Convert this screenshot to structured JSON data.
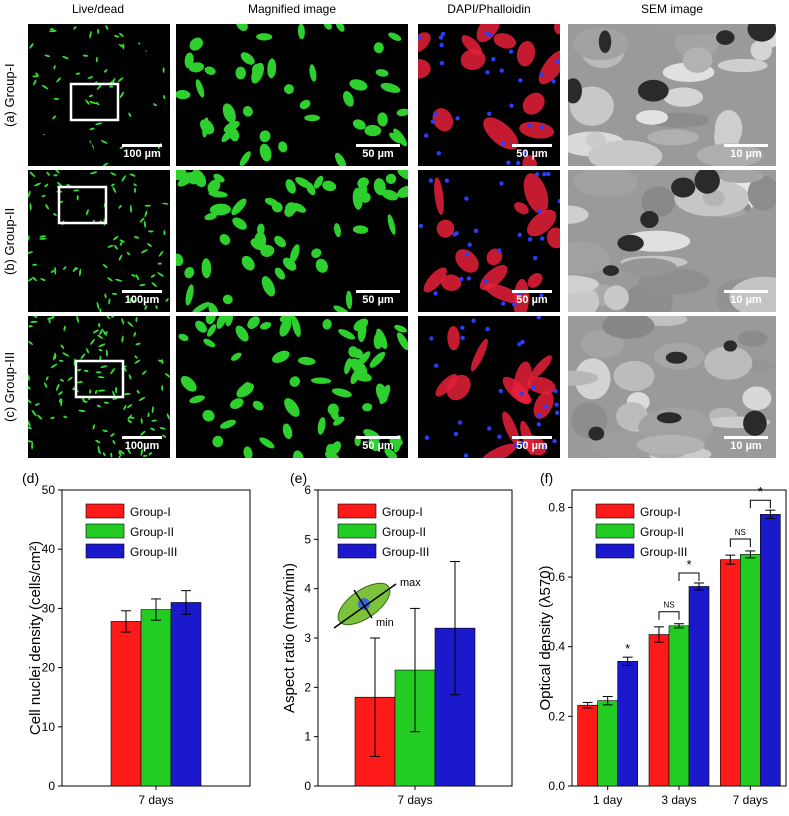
{
  "columns": [
    "Live/dead",
    "Magnified image",
    "DAPI/Phalloidin",
    "SEM image"
  ],
  "rows": [
    {
      "label": "(a) Group-I",
      "scales": [
        "100 µm",
        "50 µm",
        "50 µm",
        "10 µm"
      ]
    },
    {
      "label": "(b) Group-II",
      "scales": [
        "100µm",
        "50 µm",
        "50 µm",
        "10 µm"
      ]
    },
    {
      "label": "(c) Group-III",
      "scales": [
        "100µm",
        "50 µm",
        "50 µm",
        "10 µm"
      ]
    }
  ],
  "panel_letters": {
    "d": "(d)",
    "e": "(e)",
    "f": "(f)"
  },
  "colors": {
    "group1": "#ff1a1a",
    "group2": "#22cc22",
    "group3": "#1a1acc"
  },
  "chart_data": [
    {
      "panel": "d",
      "type": "bar",
      "categories": [
        "7 days"
      ],
      "series": [
        {
          "name": "Group-I",
          "values": [
            27.8
          ],
          "errors": [
            1.8
          ]
        },
        {
          "name": "Group-II",
          "values": [
            29.8
          ],
          "errors": [
            1.8
          ]
        },
        {
          "name": "Group-III",
          "values": [
            31.0
          ],
          "errors": [
            2.0
          ]
        }
      ],
      "xlabel": "7 days",
      "ylabel": "Cell nuclei density (cells/cm²)",
      "ylim": [
        0,
        50
      ],
      "yticks": [
        "0",
        "10",
        "20",
        "30",
        "40",
        "50"
      ],
      "legend": "top-left"
    },
    {
      "panel": "e",
      "type": "bar",
      "categories": [
        "7 days"
      ],
      "series": [
        {
          "name": "Group-I",
          "values": [
            1.8
          ],
          "errors": [
            1.2
          ]
        },
        {
          "name": "Group-II",
          "values": [
            2.35
          ],
          "errors": [
            1.25
          ]
        },
        {
          "name": "Group-III",
          "values": [
            3.2
          ],
          "errors": [
            1.35
          ]
        }
      ],
      "xlabel": "7 days",
      "ylabel": "Aspect ratio (max/min)",
      "ylim": [
        0,
        6
      ],
      "yticks": [
        "0",
        "1",
        "2",
        "3",
        "4",
        "5",
        "6"
      ],
      "inset_labels": [
        "max",
        "min"
      ],
      "legend": "top-left"
    },
    {
      "panel": "f",
      "type": "bar",
      "categories": [
        "1 day",
        "3 days",
        "7 days"
      ],
      "series": [
        {
          "name": "Group-I",
          "values": [
            0.232,
            0.435,
            0.65
          ],
          "errors": [
            0.008,
            0.022,
            0.013
          ]
        },
        {
          "name": "Group-II",
          "values": [
            0.245,
            0.46,
            0.665
          ],
          "errors": [
            0.012,
            0.006,
            0.01
          ]
        },
        {
          "name": "Group-III",
          "values": [
            0.358,
            0.573,
            0.78
          ],
          "errors": [
            0.012,
            0.01,
            0.012
          ]
        }
      ],
      "xlabel": "",
      "ylabel": "Optical density (λ570)",
      "ylim": [
        0,
        0.85
      ],
      "yticks": [
        "0.0",
        "0.2",
        "0.4",
        "0.6",
        "0.8"
      ],
      "annotations": [
        "*",
        "NS",
        "*",
        "NS",
        "*"
      ],
      "legend": "top-left"
    }
  ]
}
